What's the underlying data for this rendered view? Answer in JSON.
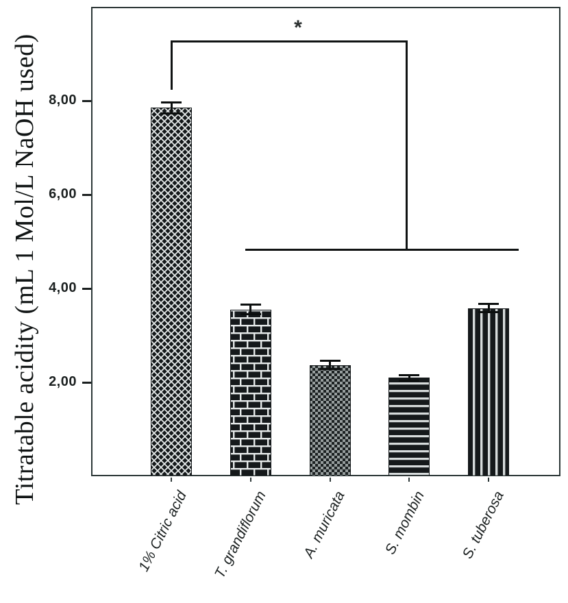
{
  "page": {
    "background": "#ffffff"
  },
  "colors": {
    "ink": "#101313",
    "frame": "#2c3737",
    "bar_dark": "#15191b",
    "pattern_light": "#e6eaea",
    "pattern_gray": "#979e9e"
  },
  "chart_data": {
    "type": "bar",
    "title": "",
    "ylabel": "Titratable acidity (mL 1 Mol/L NaOH used)",
    "xlabel": "",
    "ylim": [
      0,
      10
    ],
    "grid": false,
    "legend": "none",
    "decimal_separator": ",",
    "yticks": [
      {
        "value": 2,
        "label": "2,00"
      },
      {
        "value": 4,
        "label": "4,00"
      },
      {
        "value": 6,
        "label": "6,00"
      },
      {
        "value": 8,
        "label": "8,00"
      }
    ],
    "categories": [
      "1% Citric acid",
      "T. grandiflorum",
      "A. muricata",
      "S. mombin",
      "S. tuberosa"
    ],
    "series": [
      {
        "name": "Titratable acidity",
        "values": [
          7.85,
          3.55,
          2.37,
          2.1,
          3.58
        ],
        "errors": [
          0.12,
          0.1,
          0.09,
          0.06,
          0.09
        ]
      }
    ],
    "bar_patterns": [
      "diagonal-weave",
      "brick",
      "fine-checker",
      "horizontal-stripes",
      "vertical-stripes"
    ],
    "significance": {
      "symbol": "*",
      "bar_index": 0,
      "group_indices": [
        1,
        2,
        3,
        4
      ],
      "bracket_y_value": 9.27,
      "bracket_drop_to_value": 8.25,
      "group_line_y_value": 4.82
    }
  }
}
